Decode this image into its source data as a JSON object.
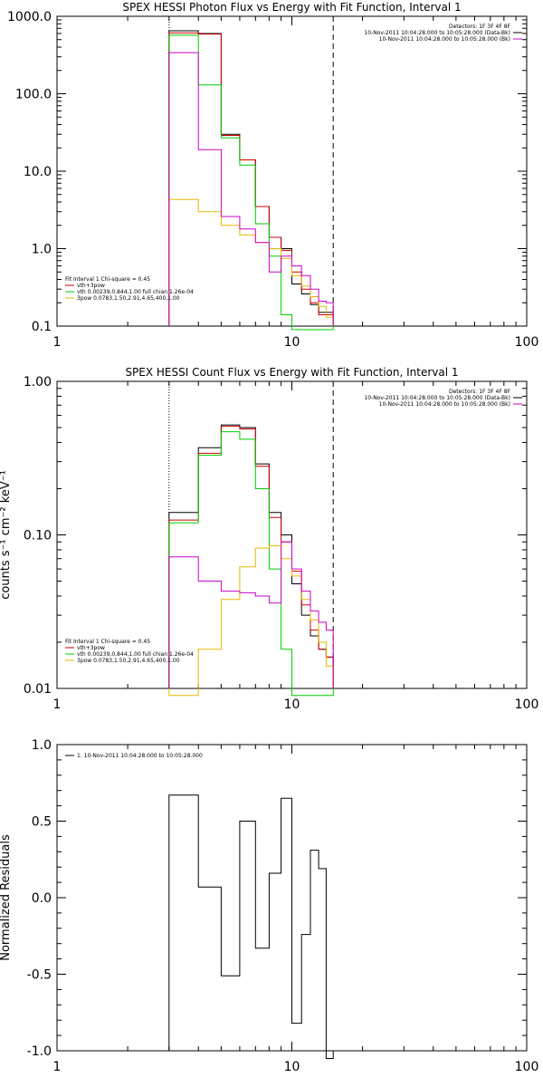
{
  "chart_data": [
    {
      "type": "line",
      "title": "SPEX HESSI Photon Flux vs Energy with Fit Function, Interval 1",
      "xlabel": "",
      "ylabel": "",
      "xscale": "log",
      "yscale": "log",
      "xlim": [
        1,
        100
      ],
      "ylim": [
        0.1,
        1000
      ],
      "x_ticks": [
        1,
        10,
        100
      ],
      "x_tick_labels": [
        "1",
        "10",
        "100"
      ],
      "y_ticks": [
        0.1,
        1,
        10,
        100,
        1000
      ],
      "y_tick_labels": [
        "0.1",
        "1.0",
        "10.0",
        "100.0",
        "1000.0"
      ],
      "grid": false,
      "vlines": [
        {
          "x": 3.0,
          "style": "dotted",
          "color": "#000000"
        },
        {
          "x": 15.0,
          "style": "dashed",
          "color": "#000000"
        }
      ],
      "legend_top_right": {
        "header": "Detectors: 1F 3F 4F 8F",
        "entries": [
          {
            "label": "10-Nov-2011 10:04:28.000 to 10:05:28.000 (Data-Bk)",
            "color": "#000000"
          },
          {
            "label": "10-Nov-2011 10:04:28.000 to 10:05:28.000 (Bk)",
            "color": "#cc00cc"
          }
        ]
      },
      "legend_bottom_left": {
        "header": "Fit Interval 1    Chi-square = 0.45",
        "entries": [
          {
            "label": "vth+3pow",
            "color": "#cc0000"
          },
          {
            "label": "vth 0.00239,0.844,1.00   full chian 1.26e-04",
            "color": "#00cc00"
          },
          {
            "label": "3pow 0.0783,1.50,2.91,4.65,400,1.00",
            "color": "#e6b800"
          }
        ]
      },
      "bin_edges": [
        3.0,
        4.0,
        5.0,
        6.0,
        7.0,
        8.0,
        9.0,
        10.0,
        11.0,
        12.0,
        13.0,
        14.0,
        15.0
      ],
      "series": [
        {
          "name": "10-Nov-2011 10:04:28.000 to 10:05:28.000 (Data-Bk)",
          "color": "#000000",
          "values": [
            650,
            600,
            30,
            14,
            3.5,
            1.4,
            1.0,
            0.35,
            0.26,
            0.19,
            0.15,
            0.15
          ]
        },
        {
          "name": "vth+3pow",
          "color": "#cc0000",
          "values": [
            610,
            590,
            29,
            14,
            3.5,
            1.4,
            0.95,
            0.5,
            0.3,
            0.2,
            0.14,
            0.14
          ]
        },
        {
          "name": "vth 0.00239,0.844,1.00   full chian 1.26e-04",
          "color": "#00cc00",
          "values": [
            570,
            130,
            27,
            12,
            2.1,
            0.8,
            0.14,
            0.09,
            0.09,
            0.09,
            0.09,
            0.09
          ]
        },
        {
          "name": "3pow 0.0783,1.50,2.91,4.65,400,1.00",
          "color": "#e6b800",
          "values": [
            4.3,
            3.0,
            2.0,
            1.5,
            1.2,
            1.0,
            0.75,
            0.45,
            0.33,
            0.24,
            0.18,
            0.13
          ]
        },
        {
          "name": "10-Nov-2011 10:04:28.000 to 10:05:28.000 (Bk)",
          "color": "#cc00cc",
          "values": [
            340,
            19,
            2.6,
            1.8,
            1.2,
            0.5,
            0.8,
            0.6,
            0.45,
            0.3,
            0.21,
            0.2
          ]
        }
      ]
    },
    {
      "type": "line",
      "title": "SPEX HESSI Count Flux vs Energy with Fit Function, Interval 1",
      "xlabel": "",
      "ylabel": "counts s⁻¹ cm⁻² keV⁻¹",
      "xscale": "log",
      "yscale": "log",
      "xlim": [
        1,
        100
      ],
      "ylim": [
        0.01,
        1.0
      ],
      "x_ticks": [
        1,
        10,
        100
      ],
      "x_tick_labels": [
        "1",
        "10",
        "100"
      ],
      "y_ticks": [
        0.01,
        0.1,
        1.0
      ],
      "y_tick_labels": [
        "0.01",
        "0.10",
        "1.00"
      ],
      "grid": false,
      "vlines": [
        {
          "x": 3.0,
          "style": "dotted",
          "color": "#000000"
        },
        {
          "x": 15.0,
          "style": "dashed",
          "color": "#000000"
        }
      ],
      "legend_top_right": {
        "header": "Detectors: 1F 3F 4F 8F",
        "entries": [
          {
            "label": "10-Nov-2011 10:04:28.000 to 10:05:28.000 (Data-Bk)",
            "color": "#000000"
          },
          {
            "label": "10-Nov-2011 10:04:28.000 to 10:05:28.000 (Bk)",
            "color": "#cc00cc"
          }
        ]
      },
      "legend_bottom_left": {
        "header": "Fit Interval 1    Chi-square = 0.45",
        "entries": [
          {
            "label": "vth+3pow",
            "color": "#cc0000"
          },
          {
            "label": "vth 0.00239,0.844,1.00   full chian 1.26e-04",
            "color": "#00cc00"
          },
          {
            "label": "3pow 0.0783,1.50,2.91,4.65,400,1.00",
            "color": "#e6b800"
          }
        ]
      },
      "bin_edges": [
        3.0,
        4.0,
        5.0,
        6.0,
        7.0,
        8.0,
        9.0,
        10.0,
        11.0,
        12.0,
        13.0,
        14.0,
        15.0
      ],
      "series": [
        {
          "name": "10-Nov-2011 10:04:28.000 to 10:05:28.000 (Data-Bk)",
          "color": "#000000",
          "values": [
            0.14,
            0.37,
            0.52,
            0.5,
            0.29,
            0.14,
            0.1,
            0.048,
            0.03,
            0.022,
            0.018,
            0.016
          ]
        },
        {
          "name": "vth+3pow",
          "color": "#cc0000",
          "values": [
            0.125,
            0.34,
            0.51,
            0.49,
            0.28,
            0.13,
            0.09,
            0.058,
            0.035,
            0.024,
            0.018,
            0.016
          ]
        },
        {
          "name": "vth 0.00239,0.844,1.00   full chian 1.26e-04",
          "color": "#00cc00",
          "values": [
            0.12,
            0.33,
            0.47,
            0.42,
            0.2,
            0.06,
            0.018,
            0.009,
            0.009,
            0.009,
            0.009,
            0.009
          ]
        },
        {
          "name": "3pow 0.0783,1.50,2.91,4.65,400,1.00",
          "color": "#e6b800",
          "values": [
            0.009,
            0.018,
            0.038,
            0.062,
            0.082,
            0.085,
            0.07,
            0.054,
            0.038,
            0.028,
            0.02,
            0.014
          ]
        },
        {
          "name": "10-Nov-2011 10:04:28.000 to 10:05:28.000 (Bk)",
          "color": "#cc00cc",
          "values": [
            0.072,
            0.05,
            0.043,
            0.042,
            0.04,
            0.036,
            0.09,
            0.06,
            0.043,
            0.032,
            0.027,
            0.024
          ]
        }
      ]
    },
    {
      "type": "line",
      "title": "",
      "xlabel": "",
      "ylabel": "Normalized Residuals",
      "xscale": "log",
      "yscale": "linear",
      "xlim": [
        1,
        100
      ],
      "ylim": [
        -1.0,
        1.0
      ],
      "x_ticks": [
        1,
        10,
        100
      ],
      "x_tick_labels": [
        "1",
        "10",
        "100"
      ],
      "y_ticks": [
        -1.0,
        -0.5,
        0.0,
        0.5,
        1.0
      ],
      "y_tick_labels": [
        "-1.0",
        "-0.5",
        "0.0",
        "0.5",
        "1.0"
      ],
      "grid": false,
      "legend_top_left": {
        "entries": [
          {
            "label": "1. 10-Nov-2011 10:04:28.000 to 10:05:28.000",
            "color": "#000000"
          }
        ]
      },
      "bin_edges": [
        3.0,
        4.0,
        5.0,
        6.0,
        7.0,
        8.0,
        9.0,
        10.0,
        11.0,
        12.0,
        13.0,
        14.0,
        15.0
      ],
      "series": [
        {
          "name": "1. 10-Nov-2011 10:04:28.000 to 10:05:28.000",
          "color": "#000000",
          "values": [
            0.67,
            0.07,
            -0.51,
            0.5,
            -0.33,
            0.16,
            0.65,
            -0.82,
            -0.24,
            0.31,
            0.19,
            -1.05
          ]
        }
      ]
    }
  ]
}
